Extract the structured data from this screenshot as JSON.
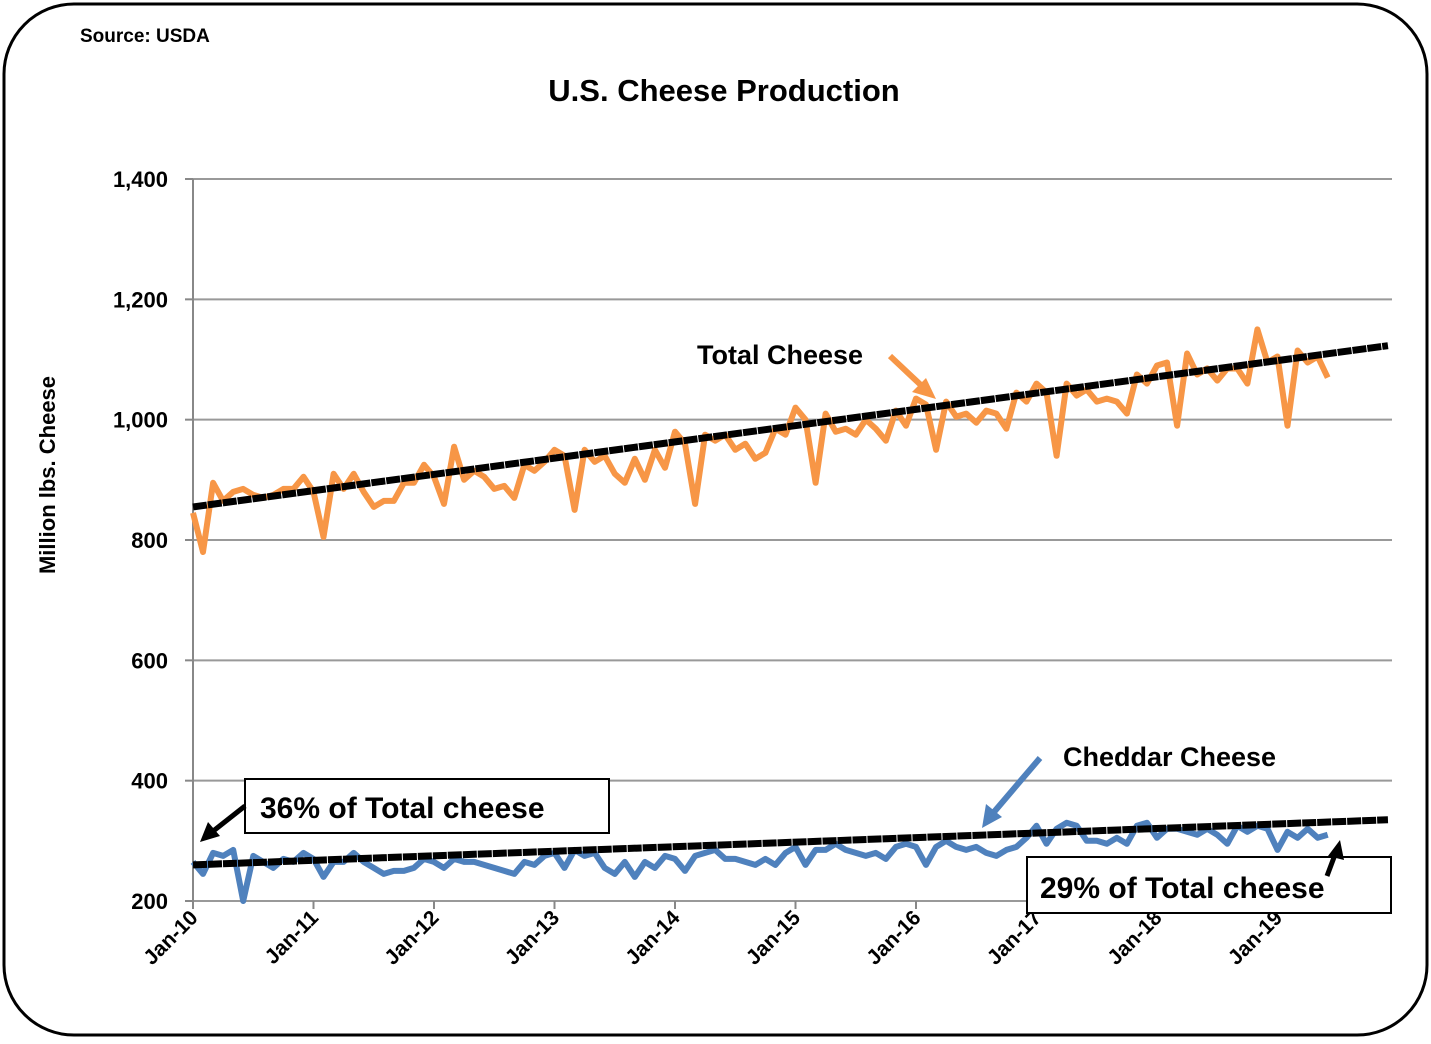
{
  "chart_data": {
    "type": "line",
    "title": "U.S. Cheese Production",
    "source": "Source: USDA",
    "ylabel": "Million lbs. Cheese",
    "xlabel": "",
    "ylim": [
      200,
      1400
    ],
    "yticks": [
      "200",
      "400",
      "600",
      "800",
      "1,000",
      "1,200",
      "1,400"
    ],
    "ytick_values": [
      200,
      400,
      600,
      800,
      1000,
      1200,
      1400
    ],
    "xticks": [
      "Jan-10",
      "Jan-11",
      "Jan-12",
      "Jan-13",
      "Jan-14",
      "Jan-15",
      "Jan-16",
      "Jan-17",
      "Jan-18",
      "Jan-19"
    ],
    "x_start": "Jan-10",
    "x_frequency": "monthly",
    "grid": "horizontal",
    "colors": {
      "total": "#F79646",
      "cheddar": "#4F81BD",
      "trend": "#000000"
    },
    "series": [
      {
        "name": "Total Cheese",
        "values": [
          845,
          780,
          895,
          865,
          880,
          885,
          875,
          870,
          875,
          885,
          885,
          905,
          880,
          805,
          910,
          885,
          910,
          880,
          855,
          865,
          865,
          895,
          895,
          925,
          905,
          860,
          955,
          900,
          915,
          905,
          885,
          890,
          870,
          925,
          915,
          930,
          950,
          940,
          850,
          950,
          930,
          940,
          910,
          895,
          935,
          900,
          950,
          920,
          980,
          960,
          860,
          975,
          965,
          975,
          950,
          960,
          935,
          945,
          985,
          975,
          1020,
          1000,
          895,
          1010,
          980,
          985,
          975,
          1000,
          985,
          965,
          1015,
          990,
          1035,
          1025,
          950,
          1030,
          1005,
          1010,
          995,
          1015,
          1010,
          985,
          1045,
          1030,
          1060,
          1045,
          940,
          1060,
          1040,
          1050,
          1030,
          1035,
          1030,
          1010,
          1075,
          1060,
          1090,
          1095,
          990,
          1110,
          1075,
          1085,
          1065,
          1085,
          1085,
          1060,
          1150,
          1095,
          1105,
          990,
          1115,
          1095,
          1105,
          1070
        ]
      },
      {
        "name": "Cheddar Cheese",
        "values": [
          265,
          245,
          280,
          275,
          285,
          200,
          275,
          265,
          255,
          270,
          265,
          280,
          270,
          240,
          265,
          265,
          280,
          265,
          255,
          245,
          250,
          250,
          255,
          270,
          265,
          255,
          270,
          265,
          265,
          260,
          255,
          250,
          245,
          265,
          260,
          275,
          280,
          255,
          285,
          275,
          280,
          255,
          245,
          265,
          240,
          265,
          255,
          275,
          270,
          250,
          275,
          280,
          285,
          270,
          270,
          265,
          260,
          270,
          260,
          280,
          290,
          260,
          285,
          285,
          295,
          285,
          280,
          275,
          280,
          270,
          290,
          295,
          290,
          260,
          290,
          300,
          290,
          285,
          290,
          280,
          275,
          285,
          290,
          305,
          325,
          295,
          320,
          330,
          325,
          300,
          300,
          295,
          305,
          295,
          325,
          330,
          305,
          320,
          320,
          315,
          310,
          320,
          310,
          295,
          325,
          315,
          325,
          320,
          285,
          315,
          305,
          320,
          305,
          310
        ]
      }
    ],
    "trendlines": [
      {
        "series": "Total Cheese",
        "start": 855,
        "end": 1123,
        "end_month": "Dec-19"
      },
      {
        "series": "Cheddar Cheese",
        "start": 260,
        "end": 335,
        "end_month": "Dec-19"
      }
    ],
    "annotations": {
      "total_label": "Total Cheese",
      "cheddar_label": "Cheddar Cheese",
      "box_left": "36% of Total cheese",
      "box_right": "29% of Total cheese"
    }
  }
}
